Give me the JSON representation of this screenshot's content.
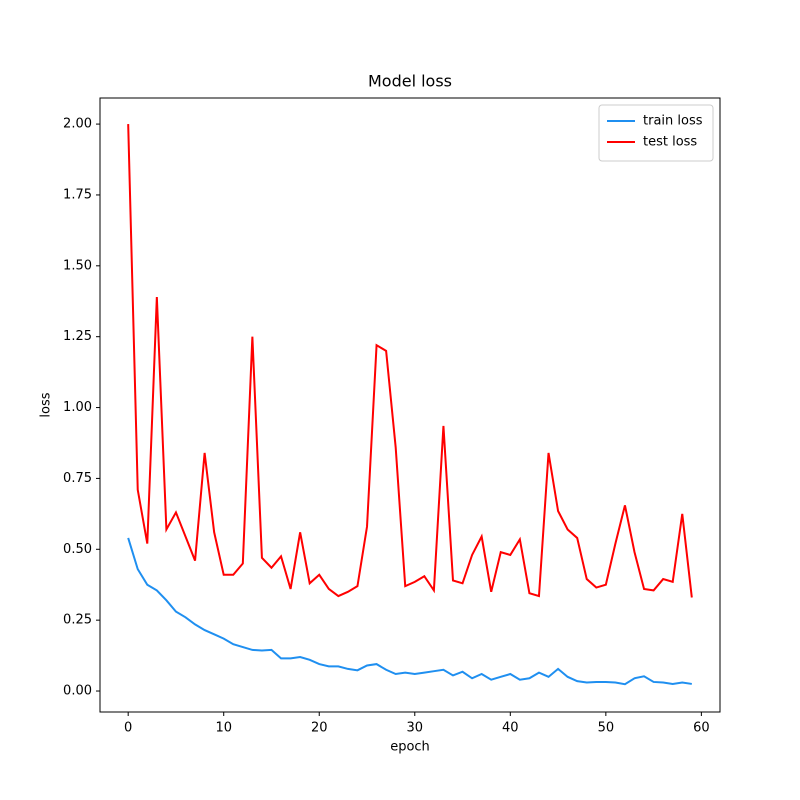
{
  "chart_data": {
    "type": "line",
    "title": "Model loss",
    "xlabel": "epoch",
    "ylabel": "loss",
    "x": [
      0,
      1,
      2,
      3,
      4,
      5,
      6,
      7,
      8,
      9,
      10,
      11,
      12,
      13,
      14,
      15,
      16,
      17,
      18,
      19,
      20,
      21,
      22,
      23,
      24,
      25,
      26,
      27,
      28,
      29,
      30,
      31,
      32,
      33,
      34,
      35,
      36,
      37,
      38,
      39,
      40,
      41,
      42,
      43,
      44,
      45,
      46,
      47,
      48,
      49,
      50,
      51,
      52,
      53,
      54,
      55,
      56,
      57,
      58,
      59
    ],
    "series": [
      {
        "name": "train loss",
        "color": "#1f8ff0",
        "values": [
          0.54,
          0.43,
          0.375,
          0.355,
          0.32,
          0.28,
          0.26,
          0.235,
          0.215,
          0.2,
          0.185,
          0.165,
          0.155,
          0.145,
          0.143,
          0.145,
          0.115,
          0.115,
          0.12,
          0.11,
          0.095,
          0.087,
          0.087,
          0.078,
          0.073,
          0.09,
          0.095,
          0.075,
          0.06,
          0.065,
          0.06,
          0.065,
          0.07,
          0.075,
          0.055,
          0.068,
          0.045,
          0.06,
          0.04,
          0.05,
          0.06,
          0.04,
          0.045,
          0.065,
          0.05,
          0.078,
          0.05,
          0.035,
          0.03,
          0.032,
          0.032,
          0.03,
          0.024,
          0.045,
          0.052,
          0.032,
          0.03,
          0.025,
          0.03,
          0.025
        ]
      },
      {
        "name": "test loss",
        "color": "#ff0000",
        "values": [
          2.0,
          0.71,
          0.52,
          1.39,
          0.57,
          0.63,
          0.545,
          0.46,
          0.84,
          0.56,
          0.41,
          0.41,
          0.45,
          1.25,
          0.47,
          0.435,
          0.475,
          0.36,
          0.56,
          0.38,
          0.41,
          0.36,
          0.335,
          0.35,
          0.37,
          0.58,
          1.22,
          1.2,
          0.86,
          0.37,
          0.385,
          0.405,
          0.355,
          0.935,
          0.39,
          0.38,
          0.48,
          0.545,
          0.35,
          0.49,
          0.48,
          0.535,
          0.345,
          0.335,
          0.84,
          0.635,
          0.57,
          0.54,
          0.395,
          0.365,
          0.375,
          0.52,
          0.655,
          0.49,
          0.36,
          0.355,
          0.395,
          0.385,
          0.625,
          0.33
        ]
      }
    ],
    "xlim": [
      -2.95,
      61.95
    ],
    "xticks": [
      0,
      10,
      20,
      30,
      40,
      50,
      60
    ],
    "ylim": [
      -0.074,
      2.092
    ],
    "yticks": [
      {
        "value": 0,
        "label": "0.00"
      },
      {
        "value": 0.25,
        "label": "0.25"
      },
      {
        "value": 0.5,
        "label": "0.50"
      },
      {
        "value": 0.75,
        "label": "0.75"
      },
      {
        "value": 1,
        "label": "1.00"
      },
      {
        "value": 1.25,
        "label": "1.25"
      },
      {
        "value": 1.5,
        "label": "1.50"
      },
      {
        "value": 1.75,
        "label": "1.75"
      },
      {
        "value": 2,
        "label": "2.00"
      }
    ],
    "legend": "upper right"
  }
}
